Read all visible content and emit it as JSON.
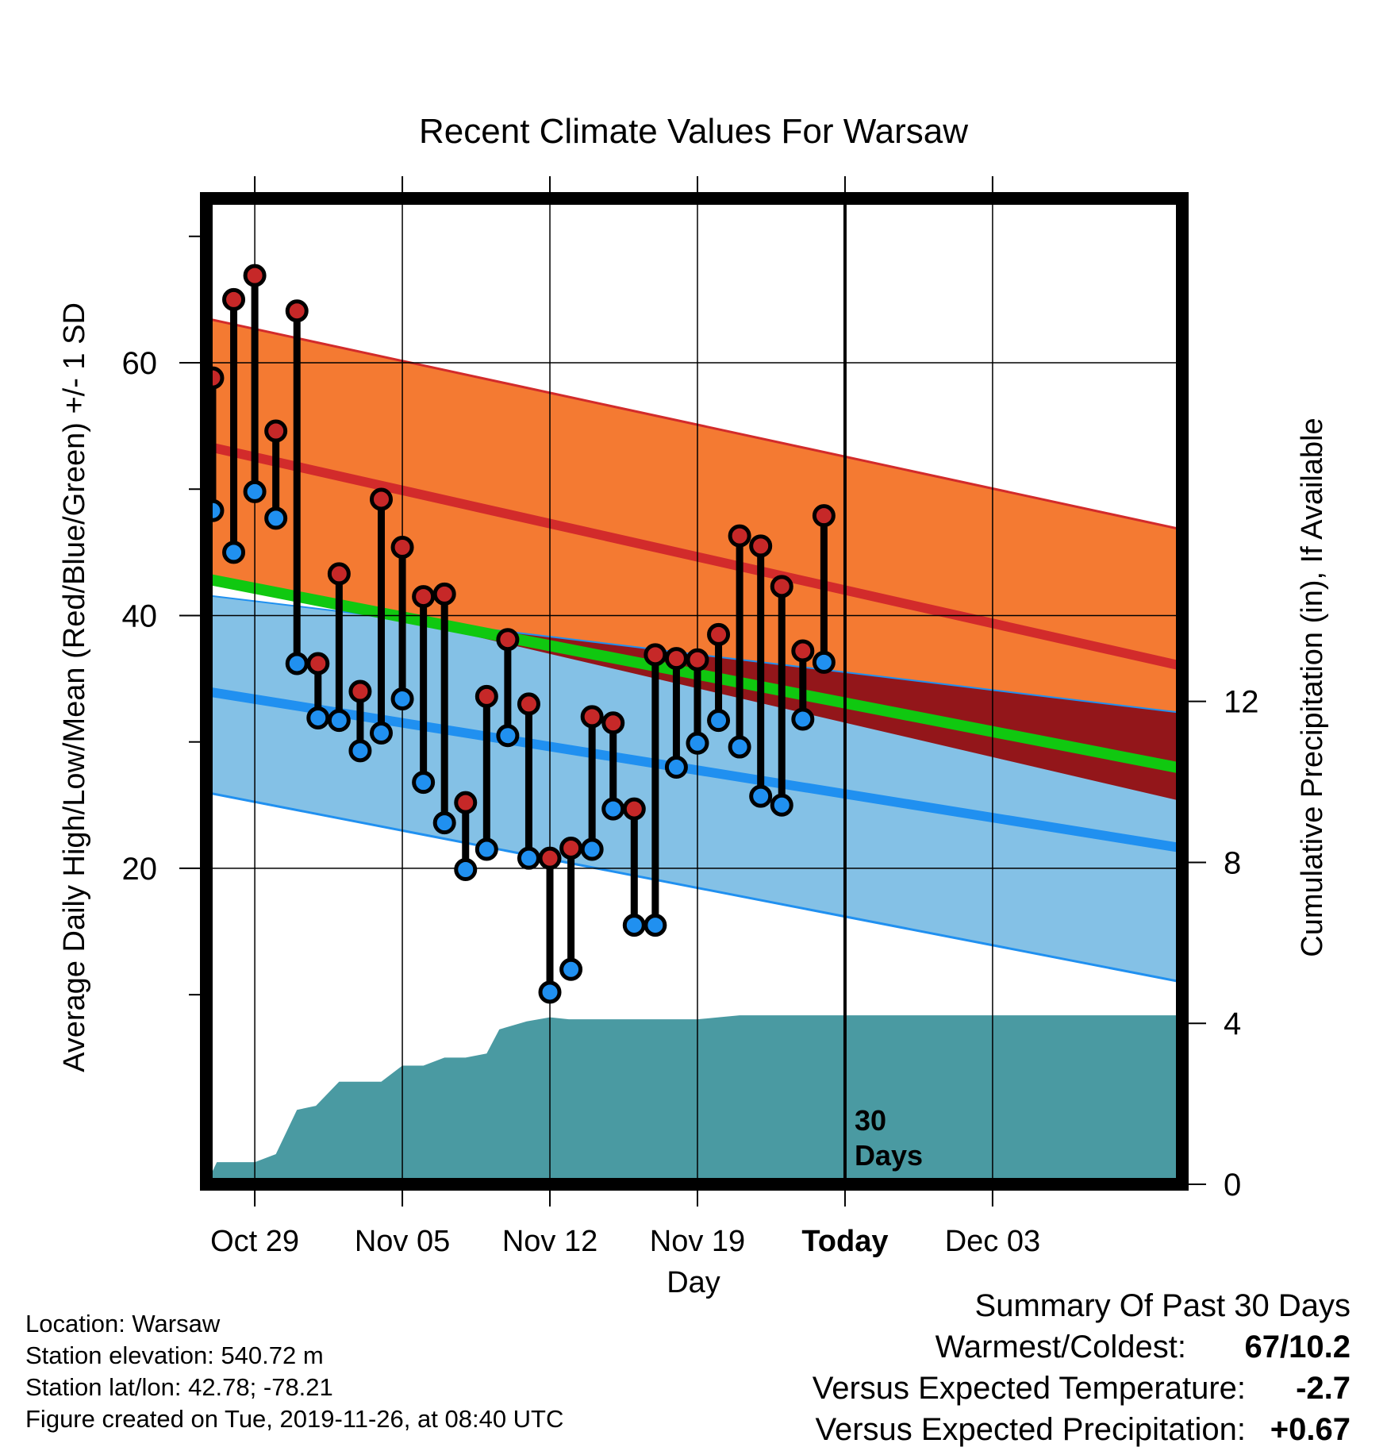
{
  "chart_data": {
    "type": "line",
    "title": "Recent Climate Values For Warsaw",
    "xlabel": "Day",
    "ylabel_left": "Average Daily High/Low/Mean (Red/Blue/Green) +/- 1 SD",
    "ylabel_right": "Cumulative Precipitation (in), If Available",
    "x_range": [
      -2.3,
      44
    ],
    "y_range": [
      -5,
      73
    ],
    "precip_range": [
      0,
      24.5
    ],
    "x_ticks": [
      {
        "x": 0,
        "label": "Oct 29",
        "bold": false
      },
      {
        "x": 7,
        "label": "Nov 05",
        "bold": false
      },
      {
        "x": 14,
        "label": "Nov 12",
        "bold": false
      },
      {
        "x": 21,
        "label": "Nov 19",
        "bold": false
      },
      {
        "x": 28,
        "label": "Today",
        "bold": true
      },
      {
        "x": 35,
        "label": "Dec 03",
        "bold": false
      }
    ],
    "y_major_ticks": [
      20,
      40,
      60
    ],
    "y_minor_ticks": [
      10,
      30,
      50,
      70
    ],
    "precip_ticks": [
      0,
      4,
      8,
      12
    ],
    "today_x": 28,
    "today_label": [
      "30",
      "Days"
    ],
    "normals": {
      "x": [
        -2.3,
        44
      ],
      "high": [
        53.4,
        36.0
      ],
      "high_plus_sd": [
        63.5,
        46.8
      ],
      "high_minus_sd": [
        43.3,
        25.3
      ],
      "low": [
        34.0,
        21.6
      ],
      "low_plus_sd": [
        41.6,
        32.3
      ],
      "low_minus_sd": [
        26.0,
        11.0
      ],
      "mean": [
        42.9,
        27.9
      ]
    },
    "series": [
      {
        "name": "High",
        "color": "#d42828",
        "x": [
          -2,
          -1,
          0,
          1,
          2,
          3,
          4,
          5,
          6,
          7,
          8,
          9,
          10,
          11,
          12,
          13,
          14,
          15,
          16,
          17,
          18,
          19,
          20,
          21,
          22,
          23,
          24,
          25,
          26,
          27
        ],
        "values": [
          58.8,
          65.0,
          66.9,
          54.6,
          64.1,
          36.2,
          43.3,
          34.0,
          49.2,
          45.4,
          41.5,
          41.7,
          25.2,
          33.6,
          38.1,
          33.0,
          20.8,
          21.6,
          32.0,
          31.5,
          24.7,
          36.9,
          36.6,
          36.5,
          38.5,
          46.3,
          45.5,
          42.3,
          37.2,
          47.9
        ]
      },
      {
        "name": "Low",
        "color": "#2090f0",
        "x": [
          -2,
          -1,
          0,
          1,
          2,
          3,
          4,
          5,
          6,
          7,
          8,
          9,
          10,
          11,
          12,
          13,
          14,
          15,
          16,
          17,
          18,
          19,
          20,
          21,
          22,
          23,
          24,
          25,
          26,
          27
        ],
        "values": [
          48.3,
          45.0,
          49.8,
          47.7,
          36.2,
          31.9,
          31.7,
          29.3,
          30.7,
          33.4,
          26.8,
          23.6,
          19.9,
          21.5,
          30.5,
          20.8,
          10.2,
          12.0,
          21.5,
          24.7,
          15.5,
          15.5,
          28.0,
          29.9,
          31.7,
          29.6,
          25.7,
          25.0,
          31.8,
          36.3
        ]
      },
      {
        "name": "Cumulative Precipitation",
        "color": "#4a9aa2",
        "x": [
          -2.3,
          -1.8,
          0,
          1,
          2,
          2.9,
          4,
          5,
          6,
          7,
          8,
          9,
          10,
          11,
          11.6,
          12.9,
          14,
          14.9,
          21,
          22,
          23,
          44
        ],
        "values": [
          0,
          0.55,
          0.55,
          0.75,
          1.85,
          1.95,
          2.55,
          2.55,
          2.55,
          2.95,
          2.95,
          3.15,
          3.15,
          3.25,
          3.85,
          4.05,
          4.15,
          4.1,
          4.1,
          4.15,
          4.2,
          4.2
        ]
      }
    ]
  },
  "footer": {
    "location": "Location: Warsaw",
    "elevation": "Station elevation: 540.72 m",
    "latlon": "Station lat/lon: 42.78; -78.21",
    "created": "Figure created on Tue, 2019-11-26, at 08:40 UTC"
  },
  "summary": {
    "heading": "Summary Of Past 30 Days",
    "warmest_label": "Warmest/Coldest:",
    "warmest_value": "67/10.2",
    "temp_label": "Versus Expected Temperature:",
    "temp_value": "-2.7",
    "temp_color": "#1f88e8",
    "precip_label": "Versus Expected Precipitation:",
    "precip_value": "+0.67",
    "precip_color": "#2cc014"
  },
  "colors": {
    "high_band": "#f47a32",
    "high_line": "#d22b2b",
    "low_band": "#84c1e6",
    "low_line": "#2090f0",
    "mean_line": "#10c810",
    "deficit": "#93161a",
    "precip_fill": "#4a9aa2",
    "marker_high": "#c62828",
    "marker_low": "#2090f0"
  }
}
